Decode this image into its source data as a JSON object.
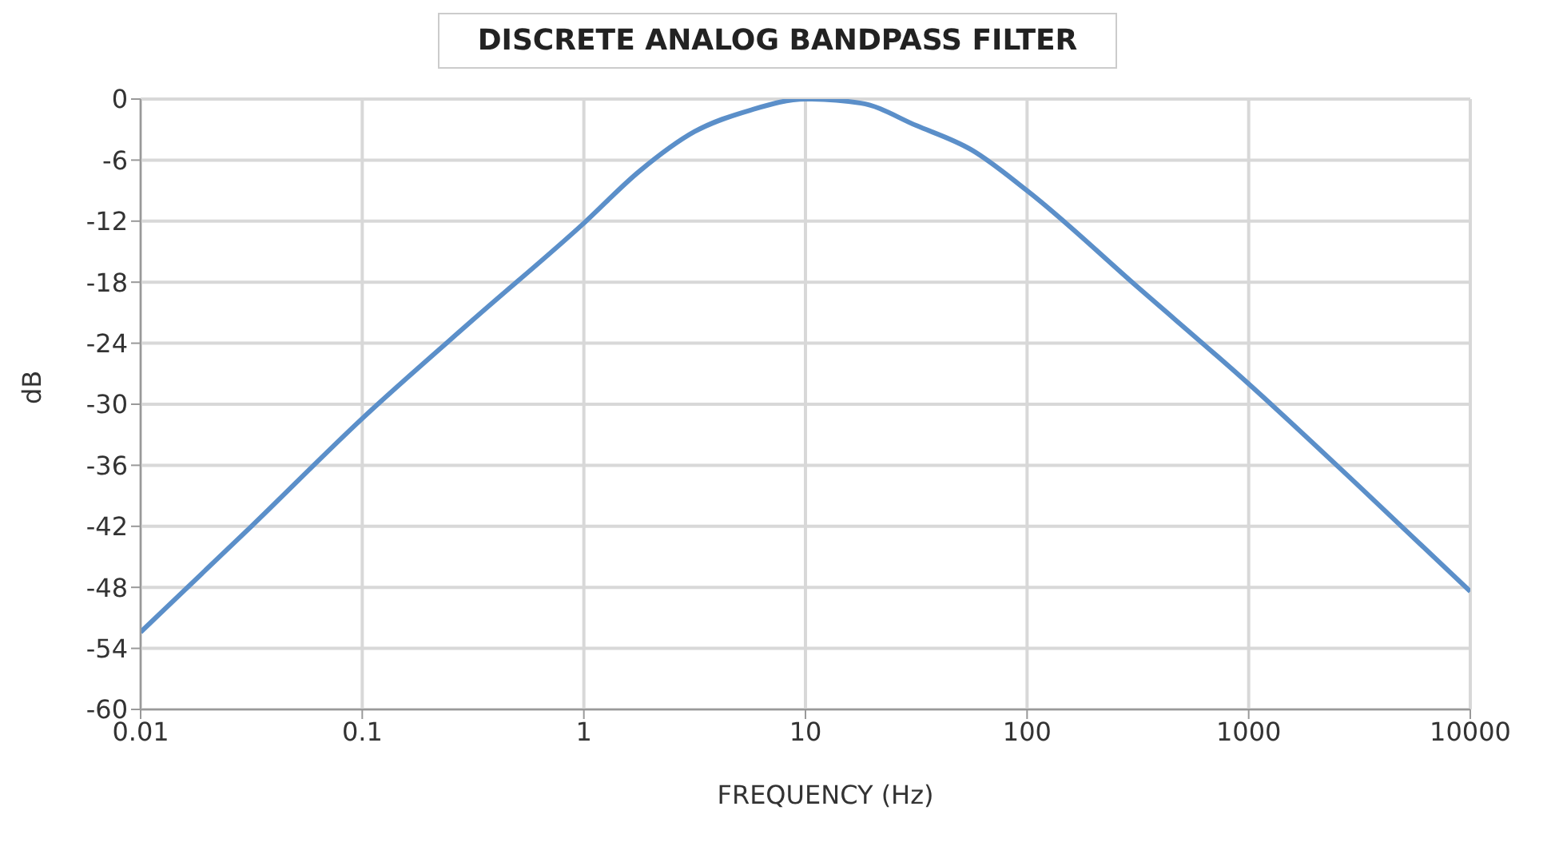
{
  "chart_data": {
    "type": "line",
    "title": "DISCRETE ANALOG BANDPASS FILTER",
    "xlabel": "FREQUENCY (Hz)",
    "ylabel": "dB",
    "log": "x",
    "grid": true,
    "marker": "none",
    "line_style": "solid",
    "x": [
      0.01,
      0.0316,
      0.1,
      0.316,
      1,
      1.78,
      3.16,
      5.62,
      10,
      17.8,
      31.6,
      56.2,
      100,
      316,
      1000,
      3162,
      10000
    ],
    "series": [
      {
        "color": "#5b8fc9",
        "values": [
          -52.4,
          -42,
          -31.4,
          -21.7,
          -12.2,
          -7.1,
          -3.2,
          -1.1,
          0,
          -0.4,
          -2.6,
          -5,
          -9,
          -18.5,
          -28,
          -38.1,
          -48.4
        ]
      }
    ],
    "xlim": [
      0.01,
      10000
    ],
    "xticks": [
      0.01,
      0.1,
      1,
      10,
      100,
      1000,
      10000
    ],
    "ylim": [
      -60,
      0
    ],
    "yticks": [
      0,
      -6,
      -12,
      -18,
      -24,
      -30,
      -36,
      -42,
      -48,
      -54,
      -60
    ]
  }
}
